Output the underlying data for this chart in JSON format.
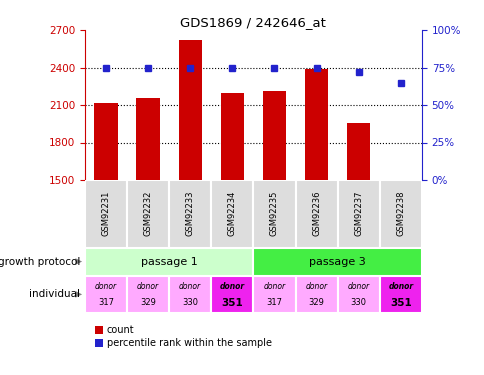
{
  "title": "GDS1869 / 242646_at",
  "samples": [
    "GSM92231",
    "GSM92232",
    "GSM92233",
    "GSM92234",
    "GSM92235",
    "GSM92236",
    "GSM92237",
    "GSM92238"
  ],
  "counts": [
    2120,
    2160,
    2620,
    2200,
    2210,
    2390,
    1960,
    1500
  ],
  "percentiles": [
    75,
    75,
    75,
    75,
    75,
    75,
    72,
    65
  ],
  "ylim_left": [
    1500,
    2700
  ],
  "ylim_right": [
    0,
    100
  ],
  "yticks_left": [
    1500,
    1800,
    2100,
    2400,
    2700
  ],
  "yticks_right": [
    0,
    25,
    50,
    75,
    100
  ],
  "bar_color": "#cc0000",
  "dot_color": "#2222cc",
  "gridline_color": "#000000",
  "passage1_color": "#ccffcc",
  "passage3_color": "#44ee44",
  "donor_colors_light": "#ffaaff",
  "donor_colors_dark": "#ee22ee",
  "donors": [
    "317",
    "329",
    "330",
    "351",
    "317",
    "329",
    "330",
    "351"
  ],
  "donor_highlight": [
    3,
    7
  ],
  "passage_groups": [
    {
      "label": "passage 1",
      "start": 0,
      "end": 3,
      "color": "#ccffcc"
    },
    {
      "label": "passage 3",
      "start": 4,
      "end": 7,
      "color": "#44ee44"
    }
  ],
  "legend_count_color": "#cc0000",
  "legend_dot_color": "#2222cc",
  "bg_color": "#ffffff",
  "left_axis_color": "#cc0000",
  "right_axis_color": "#2222cc",
  "sample_box_color": "#dddddd",
  "gridlines_at": [
    1800,
    2100,
    2400
  ]
}
